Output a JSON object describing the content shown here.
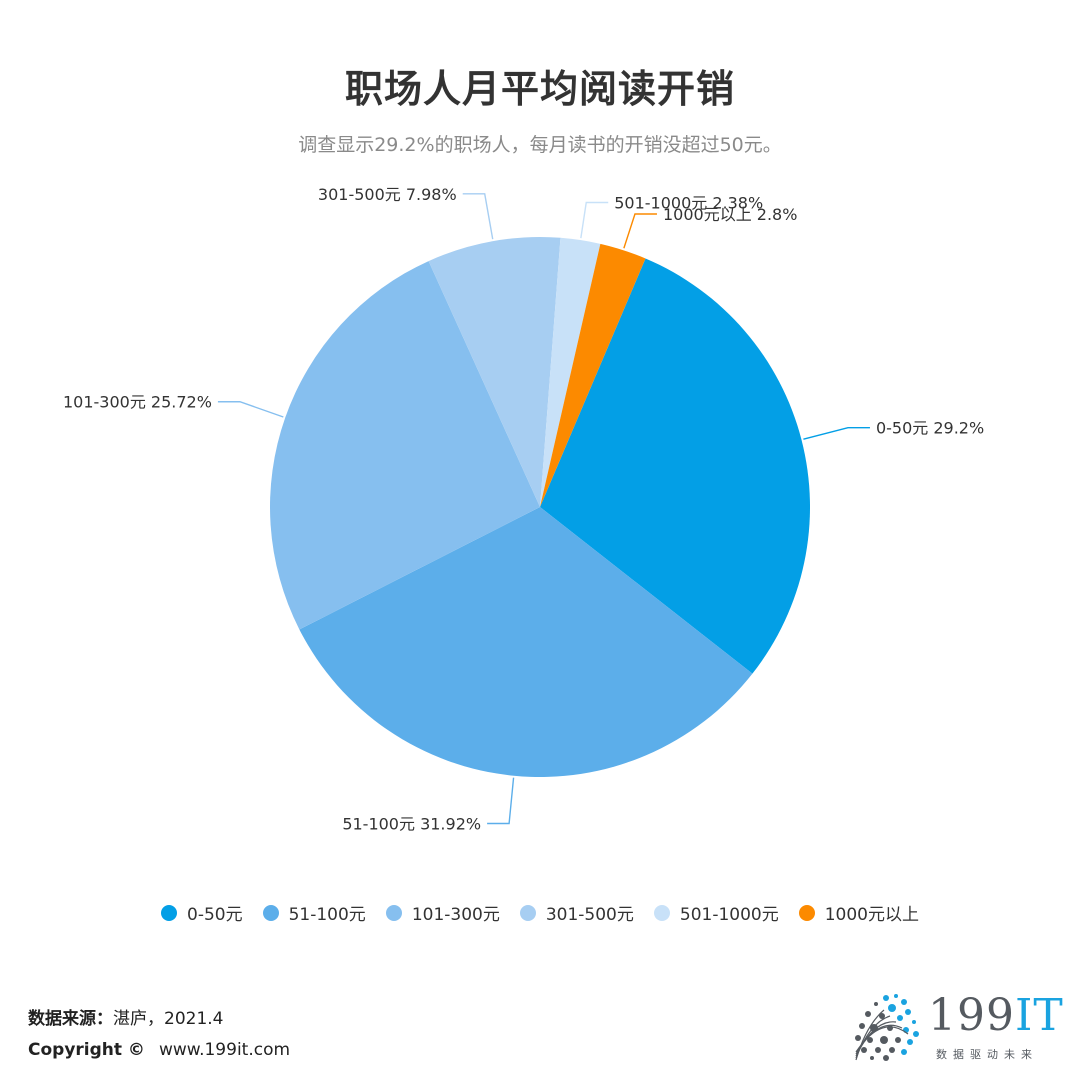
{
  "title": "职场人月平均阅读开销",
  "subtitle": "调查显示29.2%的职场人，每月读书的开销没超过50元。",
  "chart_data": {
    "type": "pie",
    "title": "职场人月平均阅读开销",
    "subtitle": "调查显示29.2%的职场人，每月读书的开销没超过50元。",
    "legend_position": "bottom",
    "slices": [
      {
        "label": "0-50元",
        "value": 29.2,
        "display": "0-50元 29.2%",
        "color": "#039fe6"
      },
      {
        "label": "51-100元",
        "value": 31.92,
        "display": "51-100元 31.92%",
        "color": "#5caeea"
      },
      {
        "label": "101-300元",
        "value": 25.72,
        "display": "101-300元 25.72%",
        "color": "#86bfef"
      },
      {
        "label": "301-500元",
        "value": 7.98,
        "display": "301-500元 7.98%",
        "color": "#a7cef2"
      },
      {
        "label": "501-1000元",
        "value": 2.38,
        "display": "501-1000元 2.38%",
        "color": "#c8e1f8"
      },
      {
        "label": "1000元以上",
        "value": 2.8,
        "display": "1000元以上 2.8%",
        "color": "#fc8a00"
      }
    ]
  },
  "footer": {
    "source_label": "数据来源：",
    "source_value": "湛庐，2021.4",
    "copyright_label": "Copyright ©",
    "copyright_url": "www.199it.com"
  },
  "logo": {
    "text_num": "199",
    "text_it": "IT",
    "slogan": "数据驱动未来",
    "dot_color": "#1aa3e0",
    "dark_color": "#555a60"
  }
}
